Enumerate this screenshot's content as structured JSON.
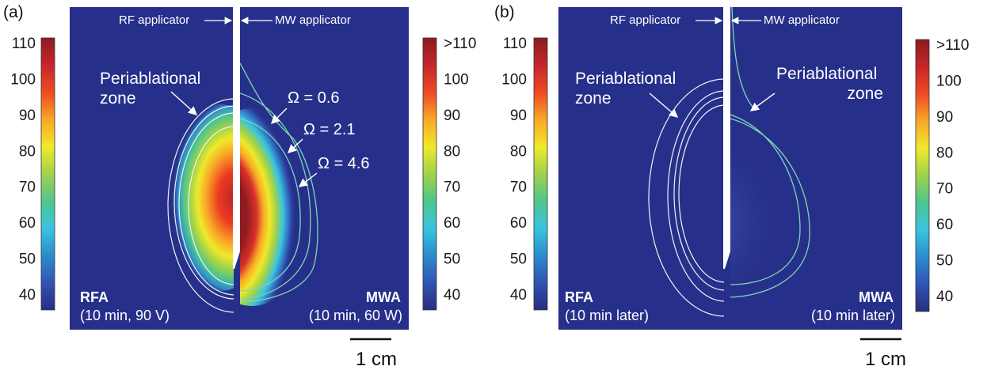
{
  "colors": {
    "background": "#26308a",
    "colormap": [
      "#2a2d7e",
      "#2f55b4",
      "#2c8ccd",
      "#39c4e0",
      "#4fc68d",
      "#9fd24b",
      "#f0e92a",
      "#f8a827",
      "#ee4a24",
      "#c6272a",
      "#8a1b1f"
    ],
    "rfa_contour": "#f2f2f2",
    "mwa_contour": "#7fd6b3"
  },
  "panel_a": {
    "label": "(a)",
    "applicators": {
      "rf": "RF applicator",
      "mw": "MW applicator"
    },
    "periablational": {
      "line1": "Periablational",
      "line2": "zone"
    },
    "omega": [
      "Ω = 0.6",
      "Ω = 2.1",
      "Ω = 4.6"
    ],
    "left_mode": {
      "title": "RFA",
      "detail": "(10 min, 90 V)"
    },
    "right_mode": {
      "title": "MWA",
      "detail": "(10 min, 60 W)"
    },
    "scale_bar": "1 cm",
    "colorbar_left_ticks": [
      "110",
      "100",
      "90",
      "80",
      "70",
      "60",
      "50",
      "40"
    ],
    "colorbar_right_ticks": [
      ">110",
      "100",
      "90",
      "80",
      "70",
      "60",
      "50",
      "40"
    ]
  },
  "panel_b": {
    "label": "(b)",
    "applicators": {
      "rf": "RF applicator",
      "mw": "MW applicator"
    },
    "periablational_left": {
      "line1": "Periablational",
      "line2": "zone"
    },
    "periablational_right": {
      "line1": "Periablational",
      "line2": "zone"
    },
    "left_mode": {
      "title": "RFA",
      "detail": "(10 min later)"
    },
    "right_mode": {
      "title": "MWA",
      "detail": "(10 min later)"
    },
    "scale_bar": "1 cm",
    "colorbar_left_ticks": [
      "110",
      "100",
      "90",
      "80",
      "70",
      "60",
      "50",
      "40"
    ],
    "colorbar_right_ticks": [
      ">110",
      "100",
      "90",
      "80",
      "70",
      "60",
      "50",
      "40"
    ]
  }
}
